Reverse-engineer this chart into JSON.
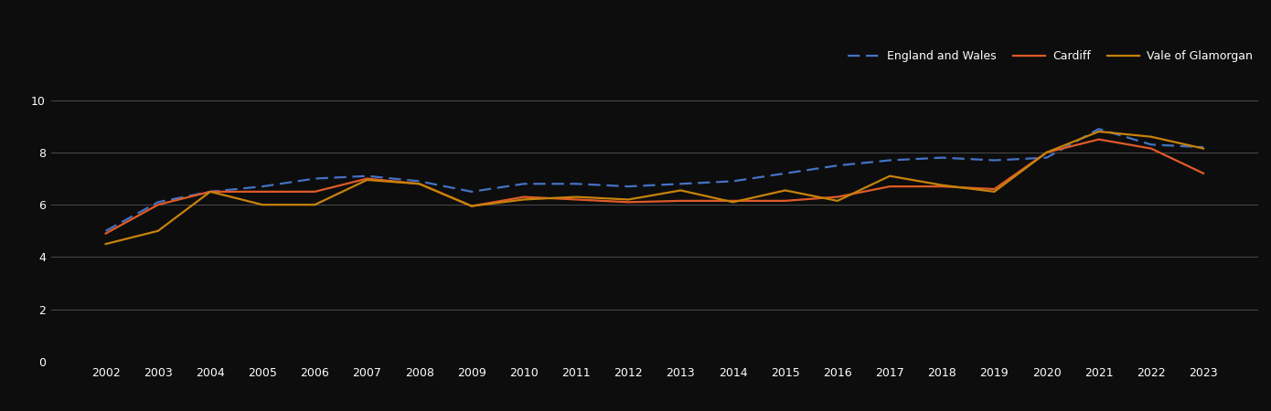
{
  "years": [
    2002,
    2003,
    2004,
    2005,
    2006,
    2007,
    2008,
    2009,
    2010,
    2011,
    2012,
    2013,
    2014,
    2015,
    2016,
    2017,
    2018,
    2019,
    2020,
    2021,
    2022,
    2023
  ],
  "england_wales": [
    5.0,
    6.1,
    6.5,
    6.7,
    7.0,
    7.1,
    6.9,
    6.5,
    6.8,
    6.8,
    6.7,
    6.8,
    6.9,
    7.2,
    7.5,
    7.7,
    7.8,
    7.7,
    7.8,
    8.9,
    8.3,
    8.2
  ],
  "cardiff": [
    4.9,
    6.0,
    6.5,
    6.5,
    6.5,
    7.0,
    6.8,
    5.95,
    6.3,
    6.2,
    6.1,
    6.15,
    6.15,
    6.15,
    6.3,
    6.7,
    6.7,
    6.6,
    8.0,
    8.5,
    8.15,
    7.2
  ],
  "vale_of_glamorgan": [
    4.5,
    5.0,
    6.5,
    6.0,
    6.0,
    6.95,
    6.8,
    5.95,
    6.2,
    6.3,
    6.2,
    6.55,
    6.1,
    6.55,
    6.15,
    7.1,
    6.75,
    6.5,
    8.0,
    8.8,
    8.6,
    8.15
  ],
  "england_wales_color": "#4472C4",
  "cardiff_color": "#E05A28",
  "vale_color": "#C8820A",
  "background_color": "#0d0d0d",
  "grid_color": "#555555",
  "text_color": "#ffffff",
  "ylim": [
    0,
    11
  ],
  "yticks": [
    0,
    2,
    4,
    6,
    8,
    10
  ],
  "legend_labels": [
    "England and Wales",
    "Cardiff",
    "Vale of Glamorgan"
  ]
}
